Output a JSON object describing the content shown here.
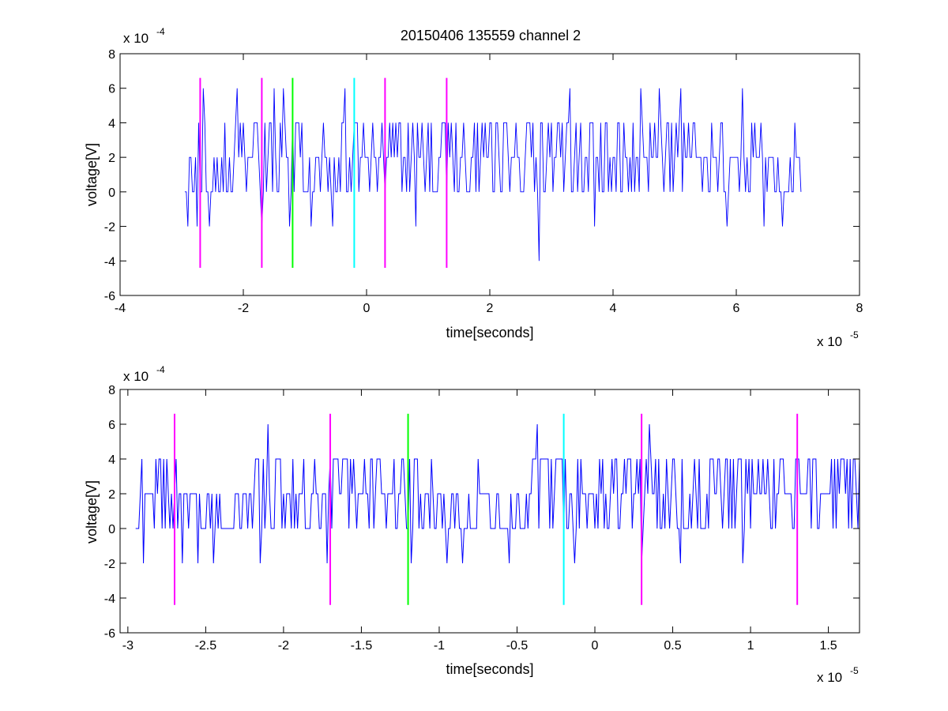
{
  "colors": {
    "signal": "#0000ff",
    "marker_magenta": "#ff00ff",
    "marker_green": "#00ff00",
    "marker_cyan": "#00ffff",
    "axes": "#000000",
    "background": "#ffffff"
  },
  "chart_data": [
    {
      "id": "top",
      "type": "line",
      "title": "20150406 135559 channel 2",
      "xlabel": "time[seconds]",
      "ylabel": "voltage[V]",
      "x_scale_base": "x 10",
      "x_scale_exp": "-5",
      "y_scale_base": "x 10",
      "y_scale_exp": "-4",
      "xlim": [
        -4,
        8
      ],
      "ylim": [
        -6,
        8
      ],
      "xticks": [
        -4,
        -2,
        0,
        2,
        4,
        6,
        8
      ],
      "xtick_labels": [
        "-4",
        "-2",
        "0",
        "2",
        "4",
        "6",
        "8"
      ],
      "yticks": [
        -6,
        -4,
        -2,
        0,
        2,
        4,
        6,
        8
      ],
      "ytick_labels": [
        "-6",
        "-4",
        "-2",
        "0",
        "2",
        "4",
        "6",
        "8"
      ],
      "grid": false,
      "signal": {
        "x_start": -2.95,
        "x_end": 7.05,
        "dt": 0.025,
        "segments": [
          {
            "from": -2.95,
            "to": -2.6,
            "low": 0,
            "high": 4,
            "spikes": [
              [
                -2.9,
                -2
              ],
              [
                -2.75,
                -2
              ],
              [
                -2.65,
                6
              ]
            ]
          },
          {
            "from": -2.6,
            "to": -2.15,
            "low": 0,
            "high": 2,
            "spikes": [
              [
                -2.55,
                -2
              ],
              [
                -2.3,
                4
              ]
            ]
          },
          {
            "from": -2.15,
            "to": -1.05,
            "low": 0,
            "high": 4,
            "spikes": [
              [
                -2.1,
                6
              ],
              [
                -1.7,
                -2
              ],
              [
                -1.5,
                6
              ],
              [
                -1.35,
                6
              ],
              [
                -1.25,
                -2
              ]
            ]
          },
          {
            "from": -1.05,
            "to": -0.45,
            "low": 0,
            "high": 2,
            "spikes": [
              [
                -0.9,
                -2
              ],
              [
                -0.7,
                4
              ],
              [
                -0.55,
                -2
              ]
            ]
          },
          {
            "from": -0.45,
            "to": 6.4,
            "low": 0,
            "high": 4,
            "spikes": [
              [
                -0.35,
                6
              ],
              [
                0.8,
                -2
              ],
              [
                2.8,
                -4
              ],
              [
                3.3,
                6
              ],
              [
                3.7,
                -2
              ],
              [
                4.45,
                6
              ],
              [
                4.75,
                6
              ],
              [
                5.1,
                6
              ],
              [
                5.85,
                -2
              ],
              [
                6.1,
                6
              ]
            ]
          },
          {
            "from": 6.4,
            "to": 7.05,
            "low": 0,
            "high": 2,
            "spikes": [
              [
                6.45,
                -2
              ],
              [
                6.75,
                -2
              ],
              [
                6.95,
                4
              ]
            ]
          }
        ]
      },
      "markers": [
        {
          "x": -2.7,
          "color": "magenta",
          "y_from": -4.4,
          "y_to": 6.6
        },
        {
          "x": -1.7,
          "color": "magenta",
          "y_from": -4.4,
          "y_to": 6.6
        },
        {
          "x": -1.2,
          "color": "green",
          "y_from": -4.4,
          "y_to": 6.6
        },
        {
          "x": -0.2,
          "color": "cyan",
          "y_from": -4.4,
          "y_to": 6.6
        },
        {
          "x": 0.3,
          "color": "magenta",
          "y_from": -4.4,
          "y_to": 6.6
        },
        {
          "x": 1.3,
          "color": "magenta",
          "y_from": -4.4,
          "y_to": 6.6
        }
      ]
    },
    {
      "id": "bottom",
      "type": "line",
      "title": "",
      "xlabel": "time[seconds]",
      "ylabel": "voltage[V]",
      "x_scale_base": "x 10",
      "x_scale_exp": "-5",
      "y_scale_base": "x 10",
      "y_scale_exp": "-4",
      "xlim": [
        -3.05,
        1.7
      ],
      "ylim": [
        -6,
        8
      ],
      "xticks": [
        -3,
        -2.5,
        -2,
        -1.5,
        -1,
        -0.5,
        0,
        0.5,
        1,
        1.5
      ],
      "xtick_labels": [
        "-3",
        "-2.5",
        "-2",
        "-1.5",
        "-1",
        "-0.5",
        "0",
        "0.5",
        "1",
        "1.5"
      ],
      "yticks": [
        -6,
        -4,
        -2,
        0,
        2,
        4,
        6,
        8
      ],
      "ytick_labels": [
        "-6",
        "-4",
        "-2",
        "0",
        "2",
        "4",
        "6",
        "8"
      ],
      "grid": false,
      "signal": {
        "x_start": -2.95,
        "x_end": 1.7,
        "dt": 0.01,
        "segments": [
          {
            "from": -2.95,
            "to": -2.6,
            "low": 0,
            "high": 4,
            "spikes": [
              [
                -2.9,
                -2
              ],
              [
                -2.65,
                -2
              ]
            ]
          },
          {
            "from": -2.6,
            "to": -2.25,
            "low": 0,
            "high": 2,
            "spikes": [
              [
                -2.55,
                -2
              ],
              [
                -2.45,
                -2
              ]
            ]
          },
          {
            "from": -2.25,
            "to": -1.05,
            "low": 0,
            "high": 4,
            "spikes": [
              [
                -2.15,
                -2
              ],
              [
                -2.1,
                6
              ],
              [
                -1.72,
                -2
              ],
              [
                -1.48,
                4
              ],
              [
                -1.18,
                -2
              ]
            ]
          },
          {
            "from": -1.05,
            "to": -0.42,
            "low": 0,
            "high": 2,
            "spikes": [
              [
                -0.95,
                -2
              ],
              [
                -0.85,
                -2
              ],
              [
                -0.75,
                4
              ],
              [
                -0.55,
                -2
              ]
            ]
          },
          {
            "from": -0.42,
            "to": 1.7,
            "low": 0,
            "high": 4,
            "spikes": [
              [
                -0.37,
                6
              ],
              [
                -0.13,
                -2
              ],
              [
                0.3,
                -2
              ],
              [
                0.35,
                6
              ],
              [
                0.55,
                -2
              ],
              [
                0.95,
                -2
              ],
              [
                1.15,
                4
              ]
            ]
          }
        ]
      },
      "markers": [
        {
          "x": -2.7,
          "color": "magenta",
          "y_from": -4.4,
          "y_to": 6.6
        },
        {
          "x": -1.7,
          "color": "magenta",
          "y_from": -4.4,
          "y_to": 6.6
        },
        {
          "x": -1.2,
          "color": "green",
          "y_from": -4.4,
          "y_to": 6.6
        },
        {
          "x": -0.2,
          "color": "cyan",
          "y_from": -4.4,
          "y_to": 6.6
        },
        {
          "x": 0.3,
          "color": "magenta",
          "y_from": -4.4,
          "y_to": 6.6
        },
        {
          "x": 1.3,
          "color": "magenta",
          "y_from": -4.4,
          "y_to": 6.6
        }
      ]
    }
  ]
}
